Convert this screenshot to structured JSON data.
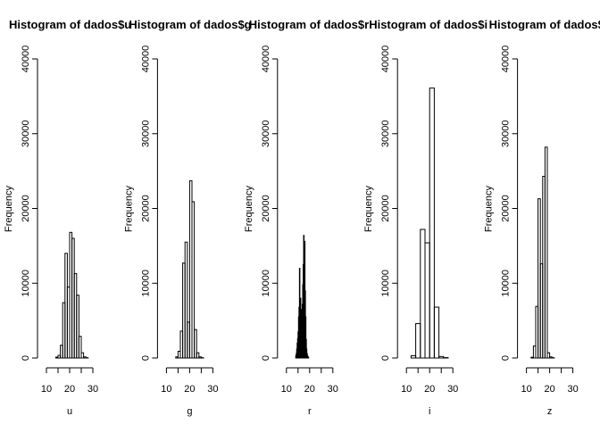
{
  "chart_data": [
    {
      "type": "bar",
      "title": "Histogram of dados$u",
      "xlabel": "u",
      "ylabel": "Frequency",
      "xlim": [
        10,
        30
      ],
      "ylim": [
        0,
        40000
      ],
      "xticks": [
        10,
        20,
        30
      ],
      "yticks": [
        0,
        10000,
        20000,
        30000,
        40000
      ],
      "bin_width": 1,
      "bins": [
        {
          "x0": 14,
          "x1": 15,
          "count": 120
        },
        {
          "x0": 15,
          "x1": 16,
          "count": 350
        },
        {
          "x0": 16,
          "x1": 17,
          "count": 1700
        },
        {
          "x0": 17,
          "x1": 18,
          "count": 7400
        },
        {
          "x0": 18,
          "x1": 19,
          "count": 14000
        },
        {
          "x0": 19,
          "x1": 20,
          "count": 9500
        },
        {
          "x0": 20,
          "x1": 21,
          "count": 16800
        },
        {
          "x0": 21,
          "x1": 22,
          "count": 16000
        },
        {
          "x0": 22,
          "x1": 23,
          "count": 11300
        },
        {
          "x0": 23,
          "x1": 24,
          "count": 8400
        },
        {
          "x0": 24,
          "x1": 25,
          "count": 2900
        },
        {
          "x0": 25,
          "x1": 26,
          "count": 700
        },
        {
          "x0": 26,
          "x1": 27,
          "count": 150
        },
        {
          "x0": 27,
          "x1": 28,
          "count": 40
        }
      ]
    },
    {
      "type": "bar",
      "title": "Histogram of dados$g",
      "xlabel": "g",
      "ylabel": "Frequency",
      "xlim": [
        10,
        30
      ],
      "ylim": [
        0,
        40000
      ],
      "xticks": [
        10,
        20,
        30
      ],
      "yticks": [
        0,
        10000,
        20000,
        30000,
        40000
      ],
      "bin_width": 1,
      "bins": [
        {
          "x0": 14,
          "x1": 15,
          "count": 150
        },
        {
          "x0": 15,
          "x1": 16,
          "count": 900
        },
        {
          "x0": 16,
          "x1": 17,
          "count": 3600
        },
        {
          "x0": 17,
          "x1": 18,
          "count": 12700
        },
        {
          "x0": 18,
          "x1": 19,
          "count": 15500
        },
        {
          "x0": 19,
          "x1": 20,
          "count": 4800
        },
        {
          "x0": 20,
          "x1": 21,
          "count": 23700
        },
        {
          "x0": 21,
          "x1": 22,
          "count": 20900
        },
        {
          "x0": 22,
          "x1": 23,
          "count": 3800
        },
        {
          "x0": 23,
          "x1": 24,
          "count": 700
        },
        {
          "x0": 24,
          "x1": 25,
          "count": 150
        },
        {
          "x0": 25,
          "x1": 26,
          "count": 40
        }
      ]
    },
    {
      "type": "bar",
      "title": "Histogram of dados$r",
      "xlabel": "r",
      "ylabel": "Frequency",
      "xlim": [
        10,
        30
      ],
      "ylim": [
        0,
        40000
      ],
      "xticks": [
        10,
        20,
        30
      ],
      "yticks": [
        0,
        10000,
        20000,
        30000,
        40000
      ],
      "bin_width": 0.2,
      "bins": [
        {
          "x0": 14.0,
          "x1": 14.2,
          "count": 300
        },
        {
          "x0": 14.2,
          "x1": 14.4,
          "count": 600
        },
        {
          "x0": 14.4,
          "x1": 14.6,
          "count": 1200
        },
        {
          "x0": 14.6,
          "x1": 14.8,
          "count": 2000
        },
        {
          "x0": 14.8,
          "x1": 15.0,
          "count": 2600
        },
        {
          "x0": 15.0,
          "x1": 15.2,
          "count": 3500
        },
        {
          "x0": 15.2,
          "x1": 15.4,
          "count": 5500
        },
        {
          "x0": 15.4,
          "x1": 15.6,
          "count": 6800
        },
        {
          "x0": 15.6,
          "x1": 15.8,
          "count": 12000
        },
        {
          "x0": 15.8,
          "x1": 16.0,
          "count": 7000
        },
        {
          "x0": 16.0,
          "x1": 16.2,
          "count": 8000
        },
        {
          "x0": 16.2,
          "x1": 16.4,
          "count": 5200
        },
        {
          "x0": 16.4,
          "x1": 16.6,
          "count": 6500
        },
        {
          "x0": 16.6,
          "x1": 16.8,
          "count": 5800
        },
        {
          "x0": 16.8,
          "x1": 17.0,
          "count": 7200
        },
        {
          "x0": 17.0,
          "x1": 17.2,
          "count": 9800
        },
        {
          "x0": 17.2,
          "x1": 17.4,
          "count": 12500
        },
        {
          "x0": 17.4,
          "x1": 17.6,
          "count": 16400
        },
        {
          "x0": 17.6,
          "x1": 17.8,
          "count": 11000
        },
        {
          "x0": 17.8,
          "x1": 18.0,
          "count": 15600
        },
        {
          "x0": 18.0,
          "x1": 18.2,
          "count": 9000
        },
        {
          "x0": 18.2,
          "x1": 18.4,
          "count": 5500
        },
        {
          "x0": 18.4,
          "x1": 18.6,
          "count": 2500
        },
        {
          "x0": 18.6,
          "x1": 18.8,
          "count": 1200
        },
        {
          "x0": 18.8,
          "x1": 19.0,
          "count": 600
        },
        {
          "x0": 19.0,
          "x1": 19.2,
          "count": 300
        },
        {
          "x0": 19.2,
          "x1": 19.4,
          "count": 150
        },
        {
          "x0": 19.4,
          "x1": 19.6,
          "count": 80
        }
      ]
    },
    {
      "type": "bar",
      "title": "Histogram of dados$i",
      "xlabel": "i",
      "ylabel": "Frequency",
      "xlim": [
        10,
        30
      ],
      "ylim": [
        0,
        40000
      ],
      "xticks": [
        10,
        20,
        30
      ],
      "yticks": [
        0,
        10000,
        20000,
        30000,
        40000
      ],
      "bin_width": 2,
      "bins": [
        {
          "x0": 12,
          "x1": 14,
          "count": 300
        },
        {
          "x0": 14,
          "x1": 16,
          "count": 4600
        },
        {
          "x0": 16,
          "x1": 18,
          "count": 17200
        },
        {
          "x0": 18,
          "x1": 20,
          "count": 15400
        },
        {
          "x0": 20,
          "x1": 22,
          "count": 36100
        },
        {
          "x0": 22,
          "x1": 24,
          "count": 6800
        },
        {
          "x0": 24,
          "x1": 26,
          "count": 200
        },
        {
          "x0": 26,
          "x1": 28,
          "count": 50
        }
      ]
    },
    {
      "type": "bar",
      "title": "Histogram of dados$z",
      "xlabel": "z",
      "ylabel": "Frequency",
      "xlim": [
        10,
        30
      ],
      "ylim": [
        0,
        40000
      ],
      "xticks": [
        10,
        20,
        30
      ],
      "yticks": [
        0,
        10000,
        20000,
        30000,
        40000
      ],
      "bin_width": 1,
      "bins": [
        {
          "x0": 12,
          "x1": 13,
          "count": 100
        },
        {
          "x0": 13,
          "x1": 14,
          "count": 1600
        },
        {
          "x0": 14,
          "x1": 15,
          "count": 6900
        },
        {
          "x0": 15,
          "x1": 16,
          "count": 21300
        },
        {
          "x0": 16,
          "x1": 17,
          "count": 12600
        },
        {
          "x0": 17,
          "x1": 18,
          "count": 24300
        },
        {
          "x0": 18,
          "x1": 19,
          "count": 28200
        },
        {
          "x0": 19,
          "x1": 20,
          "count": 700
        },
        {
          "x0": 20,
          "x1": 21,
          "count": 150
        },
        {
          "x0": 21,
          "x1": 22,
          "count": 40
        }
      ]
    }
  ],
  "colors": {
    "background": "#ffffff",
    "ink": "#000000"
  }
}
